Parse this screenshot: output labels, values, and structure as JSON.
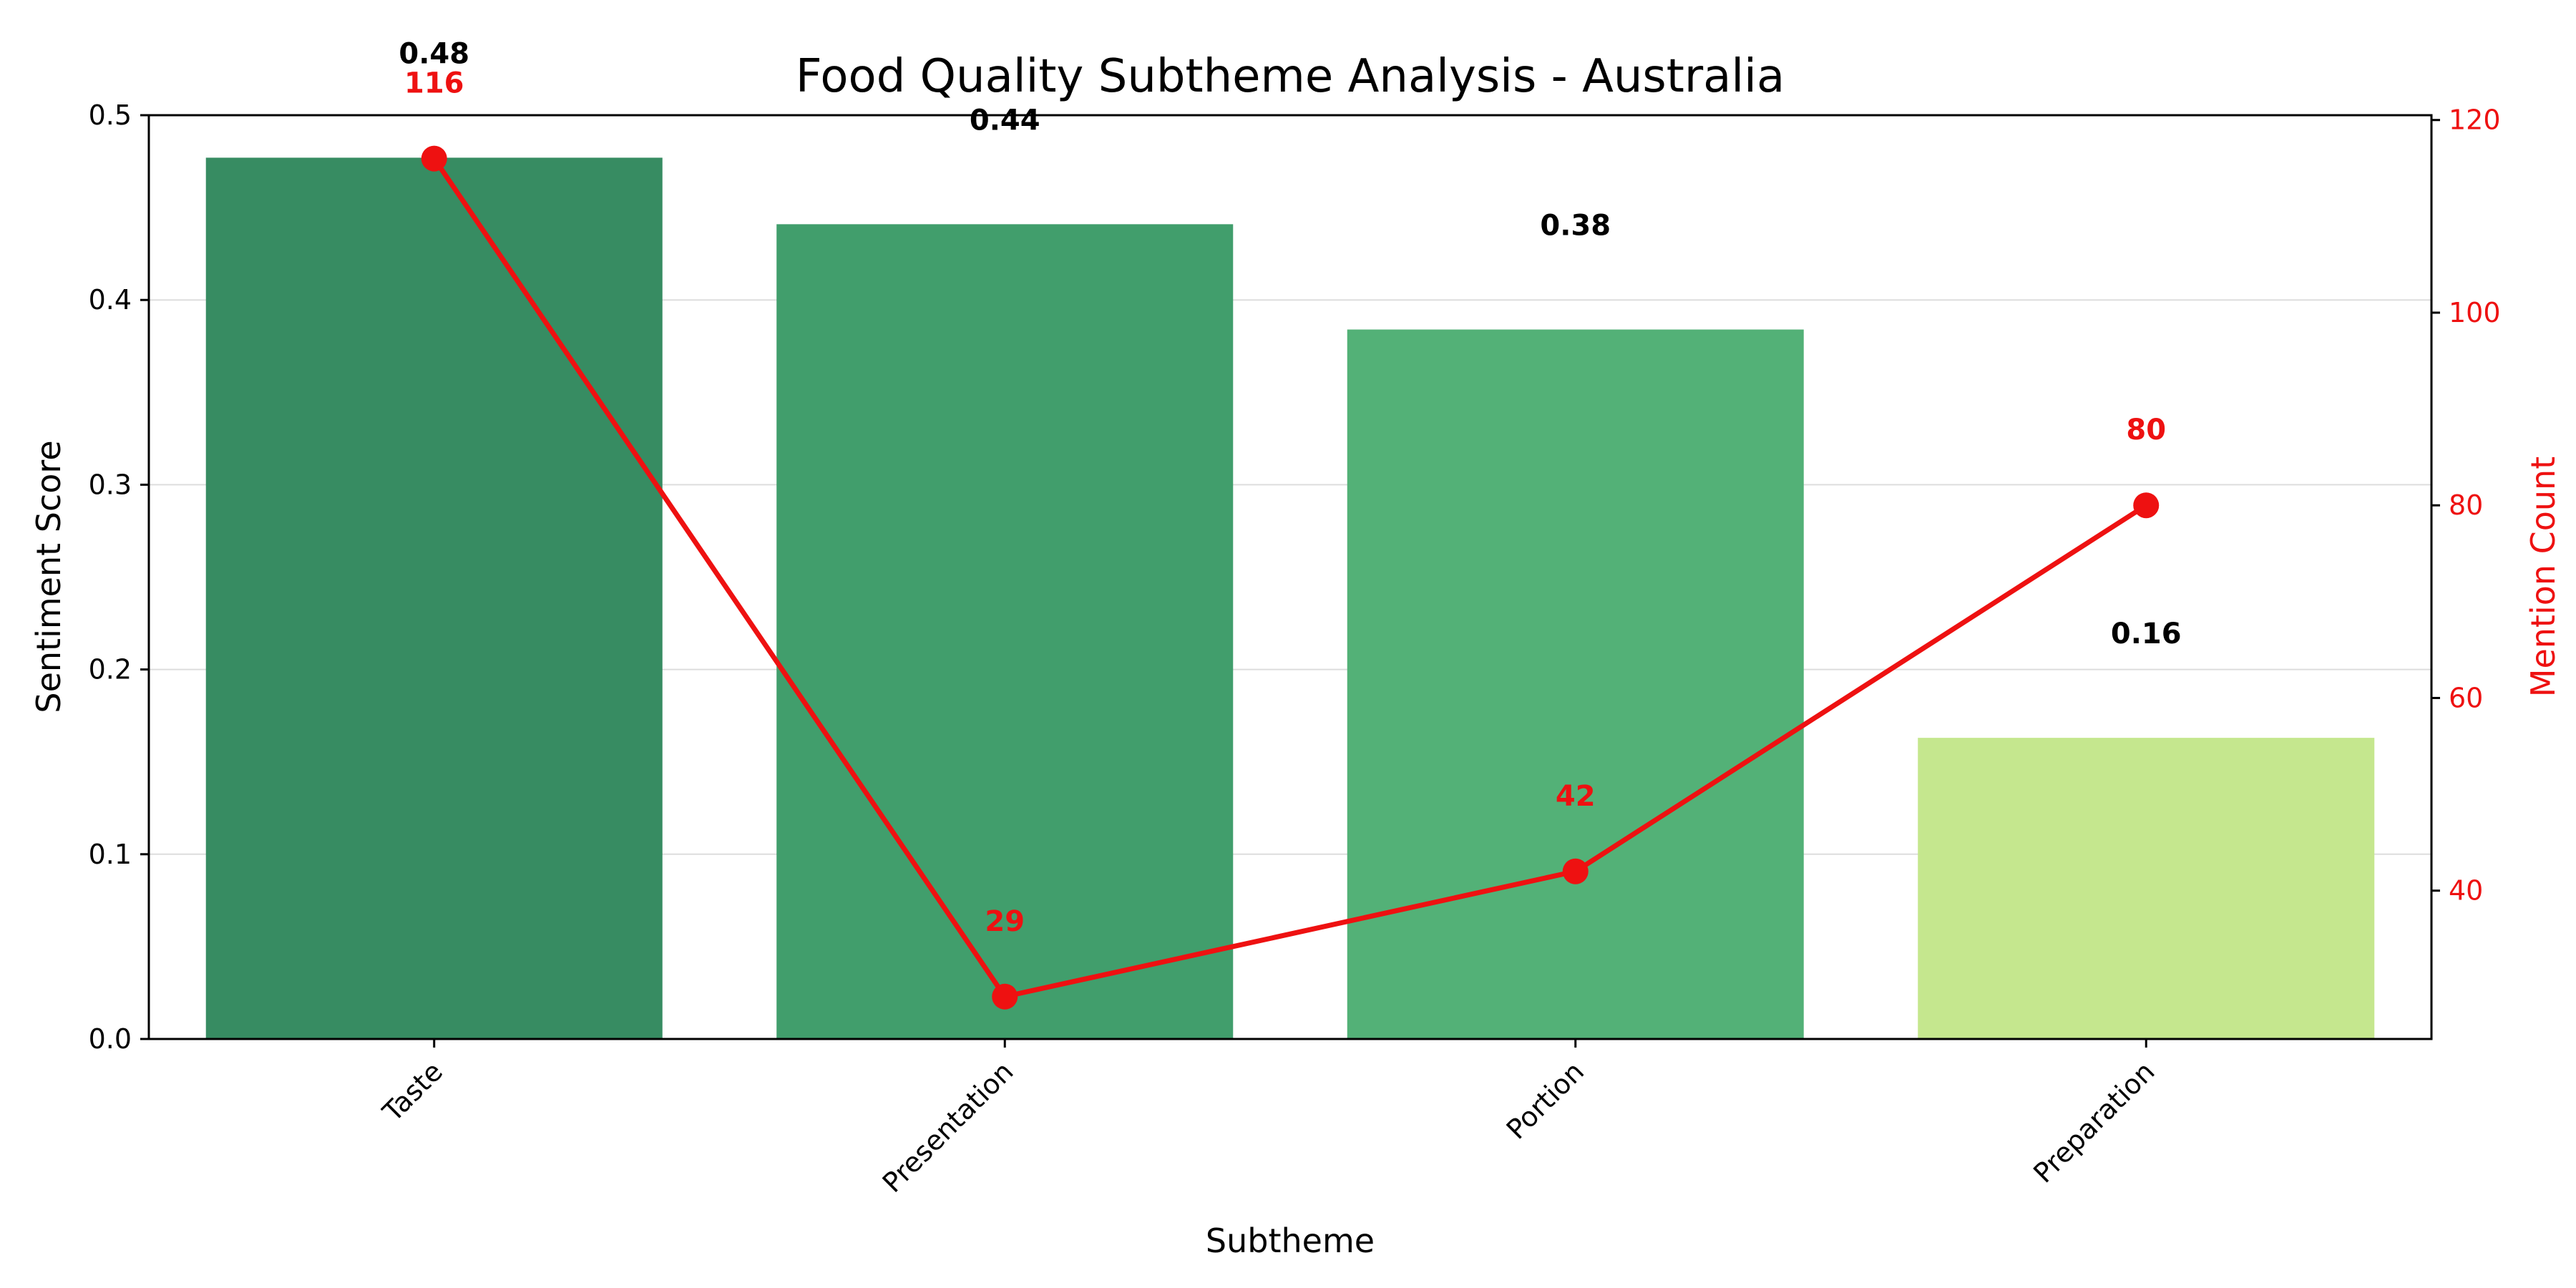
{
  "chart_data": {
    "type": "bar",
    "title": "Food Quality Subtheme Analysis - Australia",
    "xlabel": "Subtheme",
    "ylabel": "Sentiment Score",
    "y2label": "Mention Count",
    "categories": [
      "Taste",
      "Presentation",
      "Portion",
      "Preparation"
    ],
    "series": [
      {
        "kind": "bar",
        "axis": "left",
        "values": [
          0.477,
          0.441,
          0.384,
          0.163
        ],
        "labels": [
          "0.48",
          "0.44",
          "0.38",
          "0.16"
        ],
        "colors": [
          "#378c62",
          "#419e6c",
          "#53b177",
          "#c5e78e"
        ]
      },
      {
        "kind": "line",
        "axis": "right",
        "values": [
          116,
          29,
          42,
          80
        ],
        "labels": [
          "116",
          "29",
          "42",
          "80"
        ],
        "color": "#ee1111"
      }
    ],
    "ylim": [
      0,
      0.5
    ],
    "yticks": [
      "0.0",
      "0.1",
      "0.2",
      "0.3",
      "0.4",
      "0.5"
    ],
    "y2lim": [
      24.6,
      120.5
    ],
    "y2ticks": [
      "40",
      "60",
      "80",
      "100",
      "120"
    ],
    "grid": true,
    "axis_color_right": "#ee1111"
  }
}
